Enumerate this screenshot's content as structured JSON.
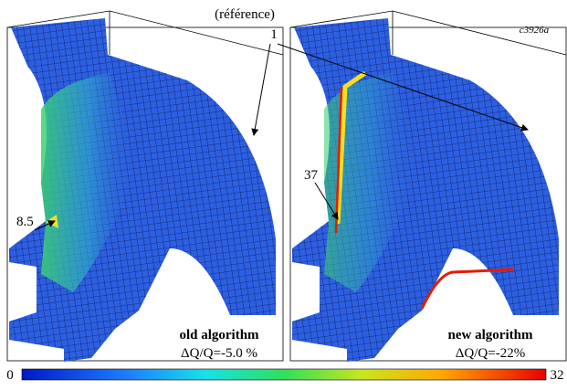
{
  "annotations": {
    "reference": "(référence)",
    "reference_value": "1",
    "figure_id": "c3926a"
  },
  "panels": [
    {
      "peak_label": "8.5",
      "algorithm": "old algorithm",
      "delta": "ΔQ/Q=-5.0 %"
    },
    {
      "peak_label": "37",
      "algorithm": "new algorithm",
      "delta": "ΔQ/Q=-22%"
    }
  ],
  "colorbar": {
    "min": 0,
    "max": 32
  }
}
